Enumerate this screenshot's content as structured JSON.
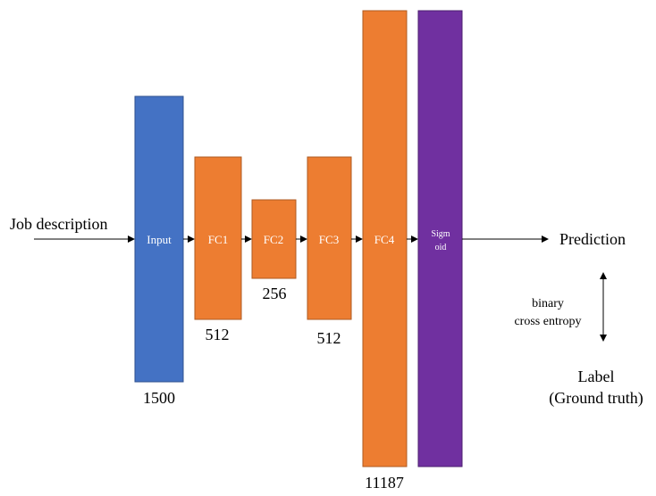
{
  "colors": {
    "input": "#4472C4",
    "fc": "#ED7D31",
    "sigmoid": "#7030A0",
    "block_border_input": "#2F528F",
    "block_border_fc": "#AE5A21",
    "block_border_sigmoid": "#4B1F6F",
    "arrow": "#000000"
  },
  "input_text": "Job description",
  "output_text": "Prediction",
  "label_text": {
    "line1": "Label",
    "line2": "(Ground truth)"
  },
  "loss_text": {
    "line1": "binary",
    "line2": "cross entropy"
  },
  "layers": {
    "input": {
      "name": "Input",
      "size": "1500"
    },
    "fc1": {
      "name": "FC1",
      "size": "512"
    },
    "fc2": {
      "name": "FC2",
      "size": "256"
    },
    "fc3": {
      "name": "FC3",
      "size": "512"
    },
    "fc4": {
      "name": "FC4",
      "size": "11187"
    },
    "sigmoid": {
      "name_line1": "Sigm",
      "name_line2": "oid"
    }
  }
}
